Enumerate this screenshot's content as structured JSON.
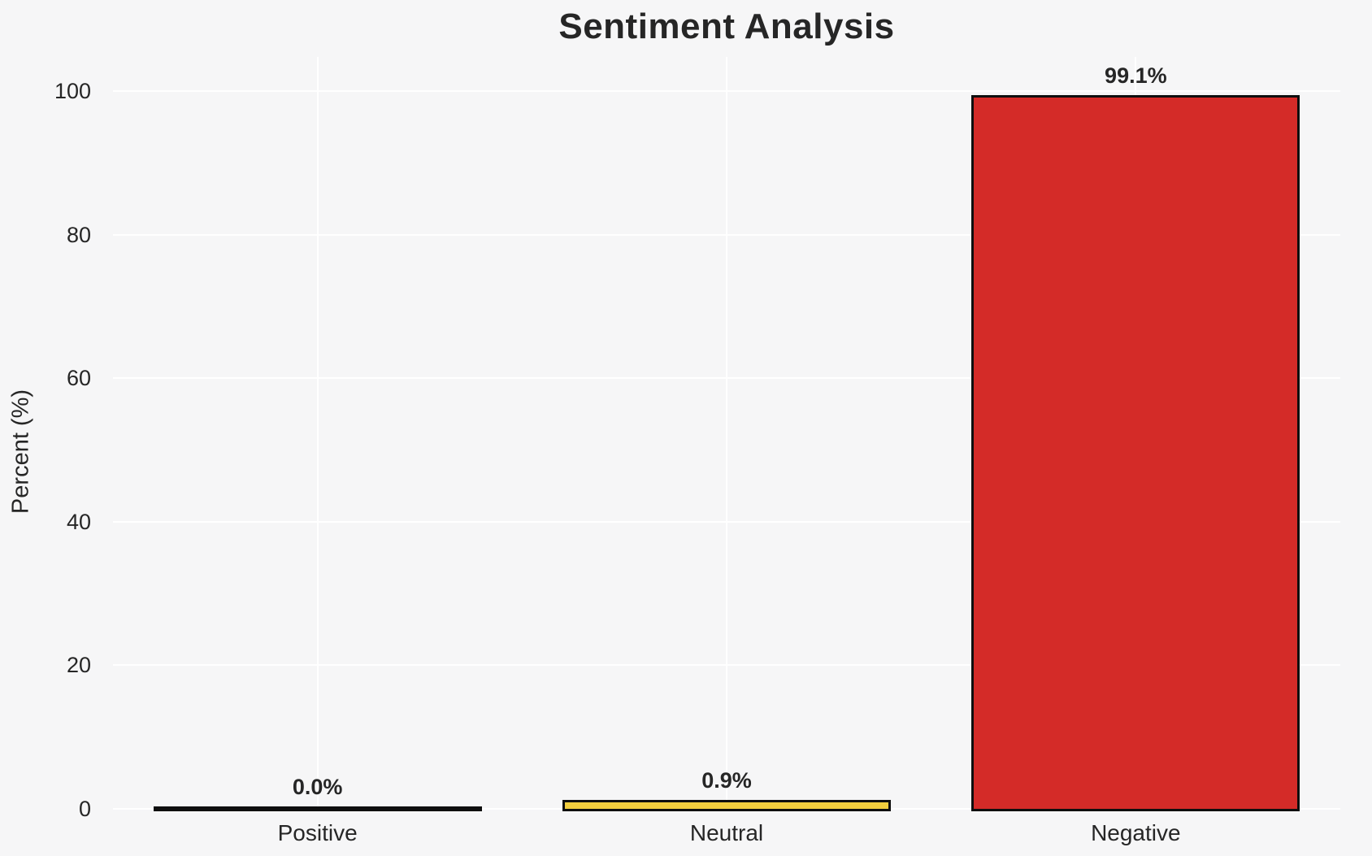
{
  "chart_data": {
    "type": "bar",
    "title": "Sentiment Analysis",
    "xlabel": "",
    "ylabel": "Percent (%)",
    "categories": [
      "Positive",
      "Neutral",
      "Negative"
    ],
    "values": [
      0.0,
      0.9,
      99.1
    ],
    "bar_labels": [
      "0.0%",
      "0.9%",
      "99.1%"
    ],
    "bar_colors": [
      "none",
      "#F2CE3E",
      "#D42B28"
    ],
    "bar_edge_color": "#0f0f0f",
    "ylim": [
      0,
      100
    ],
    "yticks": [
      0,
      20,
      40,
      60,
      80,
      100
    ],
    "grid": "on",
    "grid_color": "#ffffff",
    "legend": "none",
    "background_color": "#f6f6f7",
    "text_color": "#262626"
  }
}
